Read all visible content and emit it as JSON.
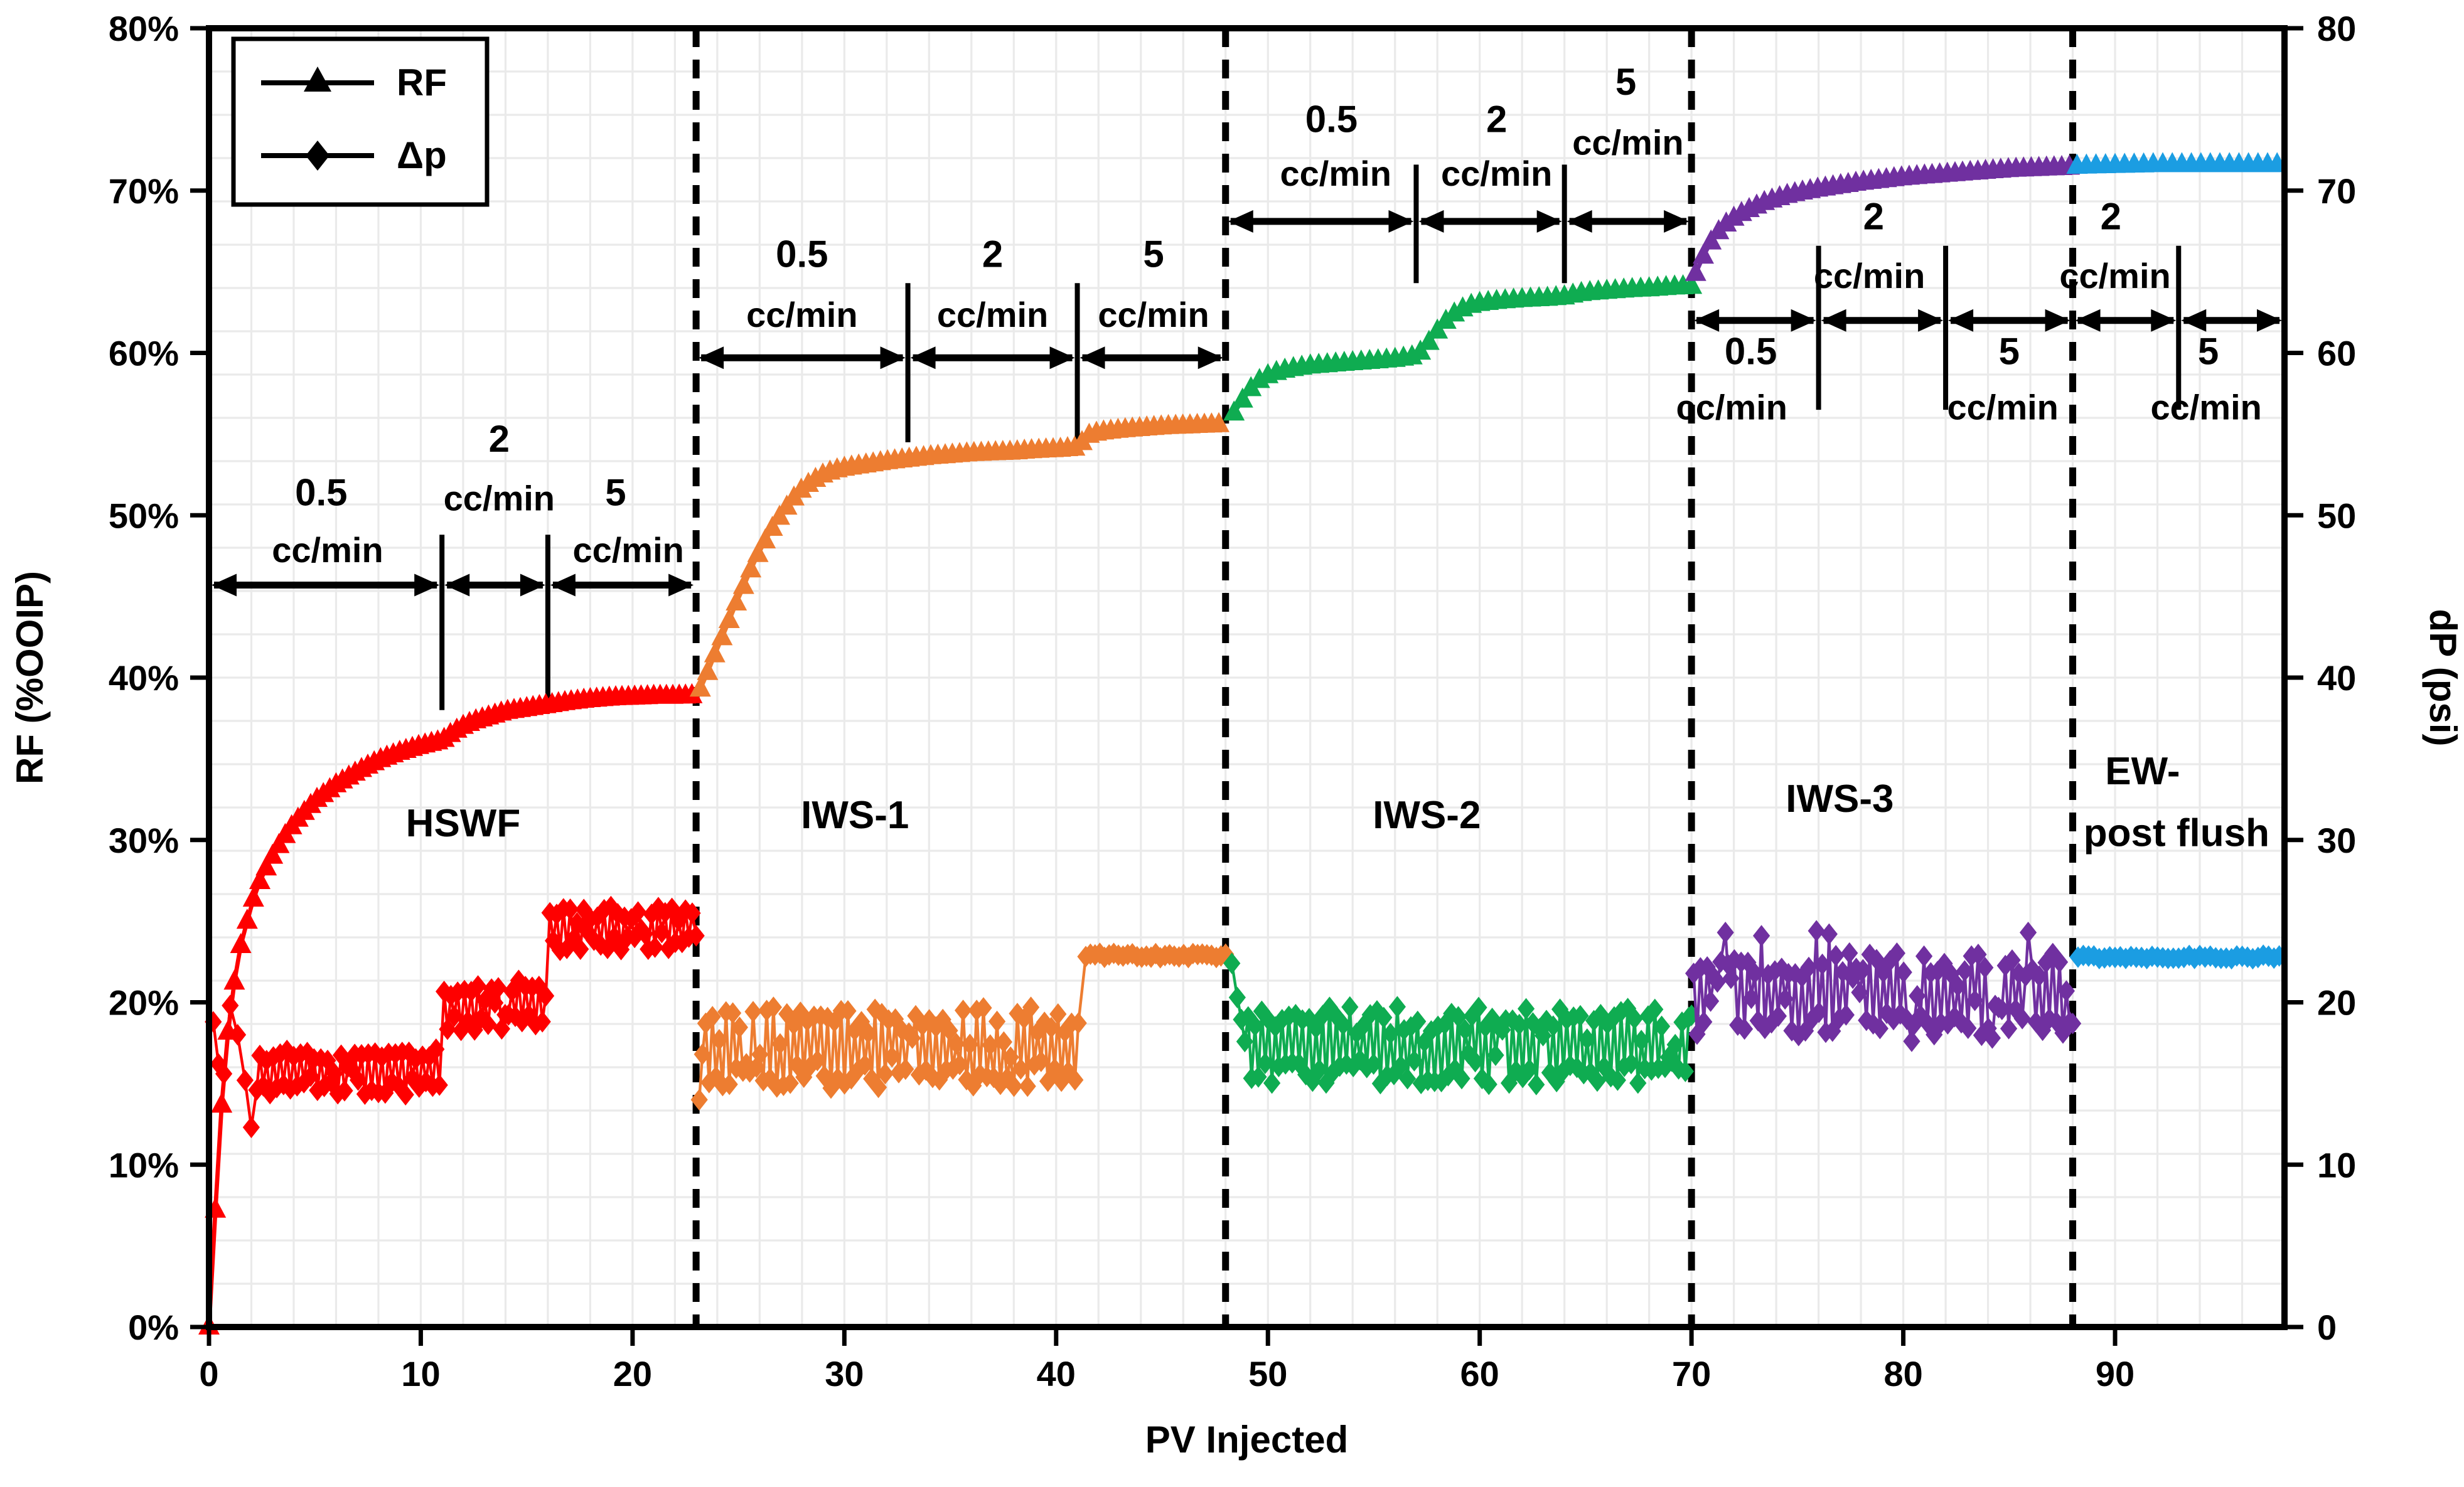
{
  "page": {
    "background": "#ffffff"
  },
  "legend": {
    "items": [
      {
        "label": "RF",
        "marker": "triangle-icon",
        "color": "#000000"
      },
      {
        "label": "Δp",
        "marker": "diamond-icon",
        "color": "#000000"
      }
    ]
  },
  "chart_data": {
    "type": "line",
    "title": "",
    "xlabel": "PV Injected",
    "ylabel_left": "RF (%OOIP)",
    "ylabel_right": "dP (psi)",
    "x_range": [
      0,
      98
    ],
    "y_left_range": [
      0,
      80
    ],
    "y_right_range": [
      0,
      80
    ],
    "x_ticks": [
      0,
      10,
      20,
      30,
      40,
      50,
      60,
      70,
      80,
      90
    ],
    "y_left_ticks": [
      "0%",
      "10%",
      "20%",
      "30%",
      "40%",
      "50%",
      "60%",
      "70%",
      "80%"
    ],
    "y_right_ticks": [
      "0",
      "10",
      "20",
      "30",
      "40",
      "50",
      "60",
      "70",
      "80"
    ],
    "grid": {
      "on": true,
      "color": "#EAEAEA",
      "x_step_pv": 2,
      "y_divisions": 30
    },
    "stage_boundaries_pv": [
      23,
      48,
      70,
      88
    ],
    "stages": [
      {
        "name": "HSWF",
        "color": "#FE0000",
        "label": "HSWF",
        "label_pv": 12.0,
        "label_y": 31.0,
        "rf_step": 0.3,
        "dp_seed": 11,
        "rf_anchors": [
          [
            0,
            0
          ],
          [
            0.25,
            6
          ],
          [
            0.5,
            12
          ],
          [
            0.8,
            17
          ],
          [
            1.1,
            20.5
          ],
          [
            1.5,
            23.5
          ],
          [
            2,
            26
          ],
          [
            2.5,
            27.8
          ],
          [
            3,
            29
          ],
          [
            3.5,
            30.1
          ],
          [
            4,
            31
          ],
          [
            5,
            32.4
          ],
          [
            6,
            33.4
          ],
          [
            7,
            34.2
          ],
          [
            8,
            34.9
          ],
          [
            9,
            35.4
          ],
          [
            10,
            35.8
          ],
          [
            11,
            36.1
          ],
          [
            11.5,
            36.6
          ],
          [
            12,
            37.0
          ],
          [
            12.5,
            37.3
          ],
          [
            13,
            37.5
          ],
          [
            13.5,
            37.7
          ],
          [
            14,
            37.9
          ],
          [
            15,
            38.1
          ],
          [
            16,
            38.3
          ],
          [
            17,
            38.5
          ],
          [
            18,
            38.65
          ],
          [
            19,
            38.75
          ],
          [
            20,
            38.8
          ],
          [
            21,
            38.85
          ],
          [
            22,
            38.85
          ],
          [
            23,
            38.9
          ]
        ],
        "dp_segments": [
          {
            "type": "points",
            "pts": [
              [
                0.2,
                18.8
              ],
              [
                0.45,
                16.2
              ],
              [
                0.7,
                15.6
              ],
              [
                1.0,
                19.8
              ],
              [
                1.35,
                18.0
              ],
              [
                1.7,
                15.2
              ],
              [
                2.0,
                12.3
              ],
              [
                2.25,
                14.6
              ]
            ]
          },
          {
            "type": "band",
            "from": 2.4,
            "to": 11.0,
            "lo": 14.3,
            "hi": 17.2,
            "step": 0.16
          },
          {
            "type": "band",
            "from": 11.1,
            "to": 16.0,
            "lo": 18.2,
            "hi": 21.4,
            "step": 0.16
          },
          {
            "type": "band",
            "from": 16.1,
            "to": 22.9,
            "lo": 23.2,
            "hi": 25.9,
            "step": 0.16
          },
          {
            "type": "points",
            "pts": [
              [
                23,
                24.1
              ]
            ]
          }
        ]
      },
      {
        "name": "IWS-1",
        "color": "#ED7D31",
        "label": "IWS-1",
        "label_pv": 30.5,
        "label_y": 31.5,
        "rf_step": 0.34,
        "dp_seed": 22,
        "rf_anchors": [
          [
            23.2,
            39.3
          ],
          [
            23.6,
            40.5
          ],
          [
            24,
            41.8
          ],
          [
            24.4,
            43
          ],
          [
            24.8,
            44.3
          ],
          [
            25.2,
            45.5
          ],
          [
            25.6,
            46.7
          ],
          [
            26,
            47.8
          ],
          [
            26.5,
            49
          ],
          [
            27,
            50
          ],
          [
            27.5,
            50.9
          ],
          [
            28,
            51.6
          ],
          [
            28.5,
            52.1
          ],
          [
            29,
            52.5
          ],
          [
            29.5,
            52.75
          ],
          [
            30,
            52.9
          ],
          [
            31,
            53.1
          ],
          [
            32,
            53.3
          ],
          [
            33,
            53.45
          ],
          [
            34,
            53.6
          ],
          [
            35,
            53.7
          ],
          [
            36,
            53.8
          ],
          [
            37,
            53.85
          ],
          [
            38,
            53.9
          ],
          [
            39,
            54.0
          ],
          [
            40,
            54.05
          ],
          [
            41,
            54.15
          ],
          [
            41.5,
            54.9
          ],
          [
            42,
            55.1
          ],
          [
            43,
            55.25
          ],
          [
            44,
            55.35
          ],
          [
            45,
            55.45
          ],
          [
            46,
            55.5
          ],
          [
            47,
            55.55
          ],
          [
            48,
            55.6
          ]
        ],
        "dp_segments": [
          {
            "type": "points",
            "pts": [
              [
                23.15,
                14.0
              ],
              [
                23.3,
                16.8
              ]
            ]
          },
          {
            "type": "band",
            "from": 23.45,
            "to": 41.2,
            "lo": 14.7,
            "hi": 19.7,
            "step": 0.16
          },
          {
            "type": "flat",
            "from": 41.4,
            "to": 48.0,
            "v": 22.9,
            "jitter": 0.15,
            "step": 0.22
          }
        ]
      },
      {
        "name": "IWS-2",
        "color": "#0FAC51",
        "label": "IWS-2",
        "label_pv": 57.5,
        "label_y": 31.5,
        "rf_step": 0.4,
        "dp_seed": 33,
        "rf_anchors": [
          [
            48.4,
            56.3
          ],
          [
            48.8,
            57.1
          ],
          [
            49.2,
            57.8
          ],
          [
            49.6,
            58.3
          ],
          [
            50,
            58.6
          ],
          [
            50.5,
            58.85
          ],
          [
            51,
            59.0
          ],
          [
            52,
            59.2
          ],
          [
            53,
            59.3
          ],
          [
            54,
            59.4
          ],
          [
            55,
            59.5
          ],
          [
            56,
            59.6
          ],
          [
            57,
            59.8
          ],
          [
            57.4,
            60.3
          ],
          [
            57.8,
            61.0
          ],
          [
            58.2,
            61.7
          ],
          [
            58.6,
            62.2
          ],
          [
            59,
            62.6
          ],
          [
            59.5,
            62.9
          ],
          [
            60,
            63.05
          ],
          [
            61,
            63.2
          ],
          [
            62,
            63.3
          ],
          [
            63,
            63.35
          ],
          [
            64,
            63.45
          ],
          [
            64.5,
            63.6
          ],
          [
            65,
            63.7
          ],
          [
            66,
            63.8
          ],
          [
            67,
            63.9
          ],
          [
            68,
            63.95
          ],
          [
            69,
            64.05
          ],
          [
            70,
            64.1
          ]
        ],
        "dp_segments": [
          {
            "type": "points",
            "pts": [
              [
                48.3,
                22.4
              ],
              [
                48.55,
                20.3
              ]
            ]
          },
          {
            "type": "band",
            "from": 48.75,
            "to": 69.9,
            "lo": 14.9,
            "hi": 19.8,
            "step": 0.16
          },
          {
            "type": "points",
            "pts": [
              [
                70,
                19.2
              ]
            ]
          }
        ]
      },
      {
        "name": "IWS-3",
        "color": "#7030A0",
        "label": "IWS-3",
        "label_pv": 77.0,
        "label_y": 32.5,
        "rf_step": 0.36,
        "dp_seed": 44,
        "rf_anchors": [
          [
            70.2,
            64.9
          ],
          [
            70.5,
            65.8
          ],
          [
            70.8,
            66.6
          ],
          [
            71.1,
            67.2
          ],
          [
            71.5,
            67.8
          ],
          [
            72,
            68.3
          ],
          [
            72.5,
            68.7
          ],
          [
            73,
            69.0
          ],
          [
            73.5,
            69.3
          ],
          [
            74,
            69.5
          ],
          [
            74.5,
            69.7
          ],
          [
            75,
            69.85
          ],
          [
            76,
            70.1
          ],
          [
            77,
            70.3
          ],
          [
            78,
            70.5
          ],
          [
            79,
            70.65
          ],
          [
            80,
            70.8
          ],
          [
            81,
            70.9
          ],
          [
            82,
            71.0
          ],
          [
            83,
            71.1
          ],
          [
            84,
            71.2
          ],
          [
            85,
            71.3
          ],
          [
            86,
            71.35
          ],
          [
            87,
            71.4
          ],
          [
            88,
            71.45
          ]
        ],
        "dp_segments": [
          {
            "type": "band",
            "from": 70.1,
            "to": 87.9,
            "lo": 17.9,
            "hi": 23.2,
            "step": 0.16,
            "spikes": [
              [
                71.6,
                24.3
              ],
              [
                73.3,
                24.1
              ],
              [
                75.9,
                24.4
              ],
              [
                76.5,
                24.2
              ],
              [
                85.9,
                24.3
              ],
              [
                80.4,
                17.6
              ],
              [
                84.2,
                17.8
              ]
            ]
          },
          {
            "type": "points",
            "pts": [
              [
                88,
                18.7
              ]
            ]
          }
        ]
      },
      {
        "name": "EW-post flush",
        "color": "#1B9DE2",
        "label": "EW-",
        "label2": "post flush",
        "label_pv": 91.3,
        "label_y": 34.2,
        "label2_pv": 92.9,
        "label2_y": 30.4,
        "rf_step": 0.45,
        "dp_seed": 55,
        "rf_anchors": [
          [
            88.2,
            71.5
          ],
          [
            90,
            71.55
          ],
          [
            92,
            71.6
          ],
          [
            94,
            71.6
          ],
          [
            96,
            71.6
          ],
          [
            97.8,
            71.6
          ]
        ],
        "dp_segments": [
          {
            "type": "flat",
            "from": 88.25,
            "to": 97.8,
            "v": 22.8,
            "jitter": 0.12,
            "step": 0.25
          }
        ]
      }
    ],
    "flow_annotations": [
      {
        "region": "HSWF",
        "arrow_y": 45.7,
        "sep_top": 48.8,
        "sep_bot": 38.0,
        "separators_pv": [
          11,
          16
        ],
        "segments": [
          {
            "from": 0,
            "to": 11,
            "rate": "0.5",
            "unit": "cc/min",
            "num_pv": 5.3,
            "num_y": 51.3,
            "cc_pv": 5.6,
            "cc_y": 47.8
          },
          {
            "from": 11,
            "to": 16,
            "rate": "2",
            "unit": "cc/min",
            "num_pv": 13.7,
            "num_y": 54.6,
            "cc_pv": 13.7,
            "cc_y": 51.0
          },
          {
            "from": 16,
            "to": 23,
            "rate": "5",
            "unit": "cc/min",
            "num_pv": 19.2,
            "num_y": 51.3,
            "cc_pv": 19.8,
            "cc_y": 47.8
          }
        ]
      },
      {
        "region": "IWS-1",
        "arrow_y": 59.7,
        "sep_top": 64.3,
        "sep_bot": 54.5,
        "separators_pv": [
          33,
          41
        ],
        "segments": [
          {
            "from": 23,
            "to": 33,
            "rate": "0.5",
            "unit": "cc/min",
            "num_pv": 28.0,
            "num_y": 66.0,
            "cc_pv": 28.0,
            "cc_y": 62.3
          },
          {
            "from": 33,
            "to": 41,
            "rate": "2",
            "unit": "cc/min",
            "num_pv": 37.0,
            "num_y": 66.0,
            "cc_pv": 37.0,
            "cc_y": 62.3
          },
          {
            "from": 41,
            "to": 48,
            "rate": "5",
            "unit": "cc/min",
            "num_pv": 44.6,
            "num_y": 66.0,
            "cc_pv": 44.6,
            "cc_y": 62.3
          }
        ]
      },
      {
        "region": "IWS-2",
        "arrow_y": 68.1,
        "sep_top": 71.6,
        "sep_bot": 64.3,
        "separators_pv": [
          57,
          64
        ],
        "segments": [
          {
            "from": 48,
            "to": 57,
            "rate": "0.5",
            "unit": "cc/min",
            "num_pv": 53.0,
            "num_y": 74.3,
            "cc_pv": 53.2,
            "cc_y": 71.0
          },
          {
            "from": 57,
            "to": 64,
            "rate": "2",
            "unit": "cc/min",
            "num_pv": 60.8,
            "num_y": 74.3,
            "cc_pv": 60.8,
            "cc_y": 71.0
          },
          {
            "from": 64,
            "to": 70,
            "rate": "5",
            "unit": "cc/min",
            "num_pv": 66.9,
            "num_y": 76.6,
            "cc_pv": 67.0,
            "cc_y": 72.9
          }
        ]
      },
      {
        "region": "IWS-3",
        "arrow_y": 62.0,
        "sep_top": 66.6,
        "sep_bot": 56.5,
        "separators_pv": [
          76,
          82
        ],
        "segments": [
          {
            "from": 70,
            "to": 76,
            "rate": "0.5",
            "unit": "cc/min",
            "num_pv": 72.8,
            "num_y": 60.0,
            "cc_pv": 71.9,
            "cc_y": 56.6
          },
          {
            "from": 76,
            "to": 82,
            "rate": "2",
            "unit": "cc/min",
            "num_pv": 78.6,
            "num_y": 68.3,
            "cc_pv": 78.4,
            "cc_y": 64.7
          },
          {
            "from": 82,
            "to": 88,
            "rate": "5",
            "unit": "cc/min",
            "num_pv": 85.0,
            "num_y": 60.0,
            "cc_pv": 84.7,
            "cc_y": 56.6
          }
        ]
      },
      {
        "region": "EW",
        "arrow_y": 62.0,
        "sep_top": 66.6,
        "sep_bot": 56.5,
        "separators_pv": [
          93
        ],
        "segments": [
          {
            "from": 88,
            "to": 93,
            "rate": "2",
            "unit": "cc/min",
            "num_pv": 89.8,
            "num_y": 68.3,
            "cc_pv": 90.0,
            "cc_y": 64.7
          },
          {
            "from": 93,
            "to": 98,
            "rate": "5",
            "unit": "cc/min",
            "num_pv": 94.4,
            "num_y": 60.0,
            "cc_pv": 94.3,
            "cc_y": 56.6
          }
        ]
      }
    ],
    "styles": {
      "frame_color": "#000000",
      "dashed_boundary": {
        "color": "#000000",
        "width": 5.5,
        "dash": "15 10"
      },
      "arrow_width": 5.5,
      "separator_width": 4
    }
  }
}
